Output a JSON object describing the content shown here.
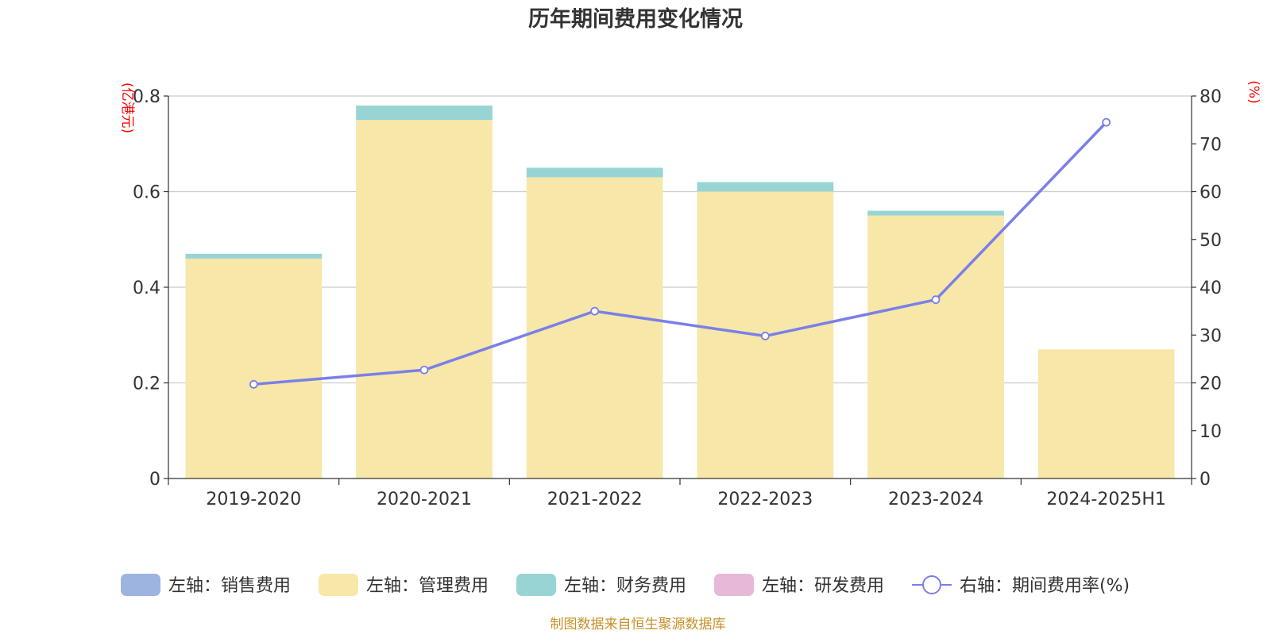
{
  "chart_data": {
    "type": "bar",
    "title": "历年期间费用变化情况",
    "left_axis_unit": "(亿港元)",
    "right_axis_unit": "(%)",
    "categories": [
      "2019-2020",
      "2020-2021",
      "2021-2022",
      "2022-2023",
      "2023-2024",
      "2024-2025H1"
    ],
    "left_ylim": [
      0,
      0.8
    ],
    "left_ticks": [
      "0",
      "0.2",
      "0.4",
      "0.6",
      "0.8"
    ],
    "left_tick_values": [
      0,
      0.2,
      0.4,
      0.6,
      0.8
    ],
    "right_ylim": [
      0,
      80
    ],
    "right_ticks": [
      "0",
      "10",
      "20",
      "30",
      "40",
      "50",
      "60",
      "70",
      "80"
    ],
    "right_tick_values": [
      0,
      10,
      20,
      30,
      40,
      50,
      60,
      70,
      80
    ],
    "stacked": true,
    "grid": true,
    "legend_position": "bottom",
    "series": [
      {
        "name": "左轴：销售费用",
        "axis": "left",
        "type": "bar",
        "color": "#9db4e0",
        "values": [
          0,
          0,
          0,
          0,
          0,
          0
        ]
      },
      {
        "name": "左轴：管理费用",
        "axis": "left",
        "type": "bar",
        "color": "#f7e7a9",
        "values": [
          0.46,
          0.75,
          0.63,
          0.6,
          0.55,
          0.27
        ]
      },
      {
        "name": "左轴：财务费用",
        "axis": "left",
        "type": "bar",
        "color": "#98d4d4",
        "values": [
          0.01,
          0.03,
          0.02,
          0.02,
          0.01,
          0
        ]
      },
      {
        "name": "左轴：研发费用",
        "axis": "left",
        "type": "bar",
        "color": "#e8b8d8",
        "values": [
          0,
          0,
          0,
          0,
          0,
          0
        ]
      },
      {
        "name": "右轴：期间费用率(%)",
        "axis": "right",
        "type": "line",
        "color": "#7b7fe8",
        "values": [
          19.7,
          22.7,
          35.0,
          29.8,
          37.4,
          74.5
        ]
      }
    ]
  },
  "footer": {
    "source": "制图数据来自恒生聚源数据库"
  }
}
